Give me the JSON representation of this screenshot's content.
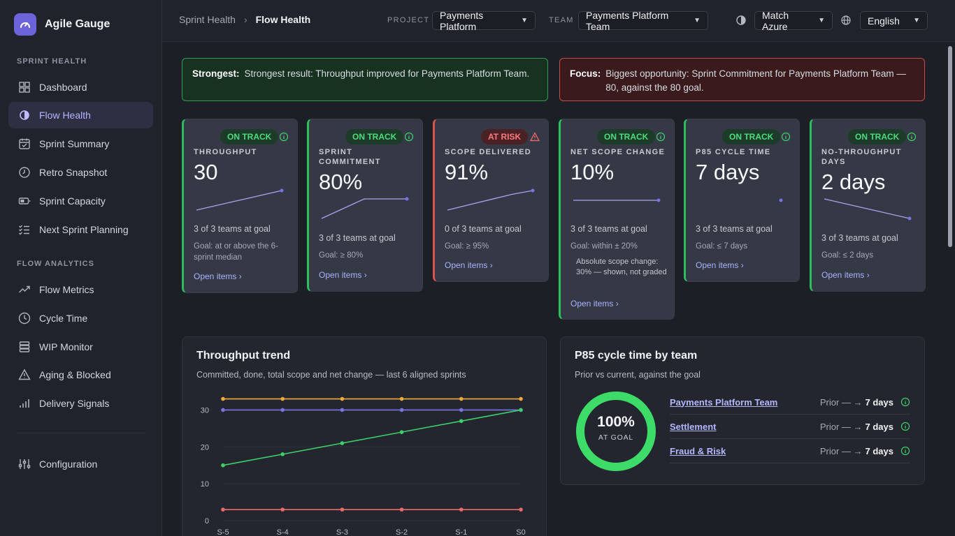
{
  "brand": {
    "name": "Agile Gauge"
  },
  "sidebar": {
    "section_sprint": "SPRINT HEALTH",
    "sprint_items": [
      {
        "label": "Dashboard",
        "icon": "grid-icon"
      },
      {
        "label": "Flow Health",
        "icon": "flow-icon"
      },
      {
        "label": "Sprint Summary",
        "icon": "calendar-check-icon"
      },
      {
        "label": "Retro Snapshot",
        "icon": "clock-icon"
      },
      {
        "label": "Sprint Capacity",
        "icon": "battery-icon"
      },
      {
        "label": "Next Sprint Planning",
        "icon": "checklist-icon"
      }
    ],
    "section_flow": "FLOW ANALYTICS",
    "flow_items": [
      {
        "label": "Flow Metrics",
        "icon": "trend-up-icon"
      },
      {
        "label": "Cycle Time",
        "icon": "clock-icon"
      },
      {
        "label": "WIP Monitor",
        "icon": "stack-icon"
      },
      {
        "label": "Aging & Blocked",
        "icon": "warning-icon"
      },
      {
        "label": "Delivery Signals",
        "icon": "bars-icon"
      }
    ],
    "config": {
      "label": "Configuration",
      "icon": "sliders-icon"
    }
  },
  "topbar": {
    "breadcrumb_parent": "Sprint Health",
    "breadcrumb_sep": "›",
    "breadcrumb_current": "Flow Health",
    "project_label": "PROJECT",
    "project_value": "Payments Platform",
    "team_label": "TEAM",
    "team_value": "Payments Platform Team",
    "theme_value": "Match Azure",
    "language_value": "English"
  },
  "banners": {
    "strong_label": "Strongest:",
    "strong_text": "Strongest result: Throughput improved for Payments Platform Team.",
    "focus_label": "Focus:",
    "focus_text": "Biggest opportunity: Sprint Commitment for Payments Platform Team — 80, against the 80 goal."
  },
  "cards": [
    {
      "status": "ON TRACK",
      "title": "THROUGHPUT",
      "value": "30",
      "teams": "3 of 3 teams at goal",
      "goal": "Goal: at or above the 6-sprint median",
      "note": "",
      "link": "Open items ›",
      "spark": [
        18,
        20,
        22,
        24,
        26,
        28
      ]
    },
    {
      "status": "ON TRACK",
      "title": "SPRINT COMMITMENT",
      "value": "80%",
      "teams": "3 of 3 teams at goal",
      "goal": "Goal: ≥ 80%",
      "note": "",
      "link": "Open items ›",
      "spark": [
        60,
        70,
        80,
        80,
        80
      ]
    },
    {
      "status": "AT RISK",
      "title": "SCOPE DELIVERED",
      "value": "91%",
      "teams": "0 of 3 teams at goal",
      "goal": "Goal: ≥ 95%",
      "note": "",
      "link": "Open items ›",
      "spark": [
        80,
        84,
        88,
        92,
        95
      ]
    },
    {
      "status": "ON TRACK",
      "title": "NET SCOPE CHANGE",
      "value": "10%",
      "teams": "3 of 3 teams at goal",
      "goal": "Goal: within ± 20%",
      "note": "Absolute scope change: 30% — shown, not graded",
      "link": "Open items ›",
      "spark": [
        10,
        10,
        10,
        10,
        10
      ]
    },
    {
      "status": "ON TRACK",
      "title": "P85 CYCLE TIME",
      "value": "7 days",
      "teams": "3 of 3 teams at goal",
      "goal": "Goal: ≤ 7 days",
      "note": "",
      "link": "Open items ›",
      "spark": [
        7
      ]
    },
    {
      "status": "ON TRACK",
      "title": "NO-THROUGHPUT DAYS",
      "value": "2 days",
      "teams": "3 of 3 teams at goal",
      "goal": "Goal: ≤ 2 days",
      "note": "",
      "link": "Open items ›",
      "spark": [
        8,
        6,
        4,
        2
      ]
    }
  ],
  "colors": {
    "ok": "#2ebd5c",
    "risk": "#d9534f",
    "accent": "#6c63d8"
  },
  "trend_panel": {
    "title": "Throughput trend",
    "subtitle": "Committed, done, total scope and net change — last 6 aligned sprints"
  },
  "chart_data": {
    "type": "line",
    "categories": [
      "S-5",
      "S-4",
      "S-3",
      "S-2",
      "S-1",
      "S0"
    ],
    "ylim": [
      0,
      35
    ],
    "yticks": [
      0,
      10,
      20,
      30
    ],
    "series": [
      {
        "values": [
          33,
          33,
          33,
          33,
          33,
          33
        ],
        "color": "#f2a93b"
      },
      {
        "values": [
          30,
          30,
          30,
          30,
          30,
          30
        ],
        "color": "#7a73e6"
      },
      {
        "values": [
          15,
          18,
          21,
          24,
          27,
          30
        ],
        "color": "#3ecf6a"
      },
      {
        "values": [
          3,
          3,
          3,
          3,
          3,
          3
        ],
        "color": "#f06a6a"
      }
    ]
  },
  "cycle_panel": {
    "title": "P85 cycle time by team",
    "subtitle": "Prior vs current, against the goal",
    "ring_value": "100%",
    "ring_fraction": 1.0,
    "ring_label": "AT GOAL",
    "teams": [
      {
        "name": "Payments Platform Team",
        "prior": "Prior — →",
        "current": "7 days"
      },
      {
        "name": "Settlement",
        "prior": "Prior — →",
        "current": "7 days"
      },
      {
        "name": "Fraud & Risk",
        "prior": "Prior — →",
        "current": "7 days"
      }
    ]
  }
}
